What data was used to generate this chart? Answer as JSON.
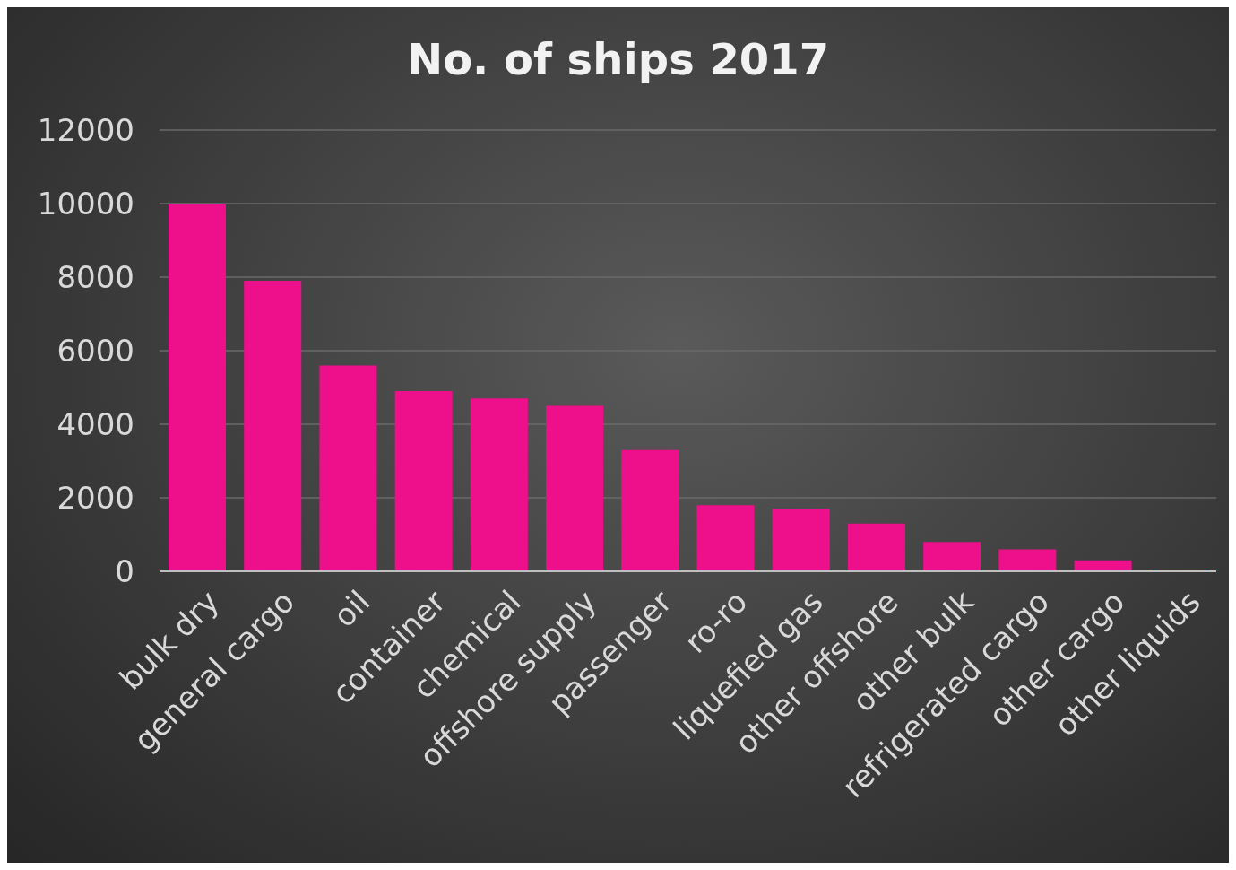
{
  "chart_data": {
    "type": "bar",
    "title": "No. of ships 2017",
    "categories": [
      "bulk dry",
      "general cargo",
      "oil",
      "container",
      "chemical",
      "offshore supply",
      "passenger",
      "ro-ro",
      "liquefied gas",
      "other offshore",
      "other bulk",
      "refrigerated cargo",
      "other cargo",
      "other liquids"
    ],
    "values": [
      10000,
      7900,
      5600,
      4900,
      4700,
      4500,
      3300,
      1800,
      1700,
      1300,
      800,
      600,
      300,
      50
    ],
    "color": "#ee0f8a",
    "ylim": [
      0,
      12000
    ],
    "yticks": [
      0,
      2000,
      4000,
      6000,
      8000,
      10000,
      12000
    ],
    "grid": "y",
    "legend": false
  }
}
